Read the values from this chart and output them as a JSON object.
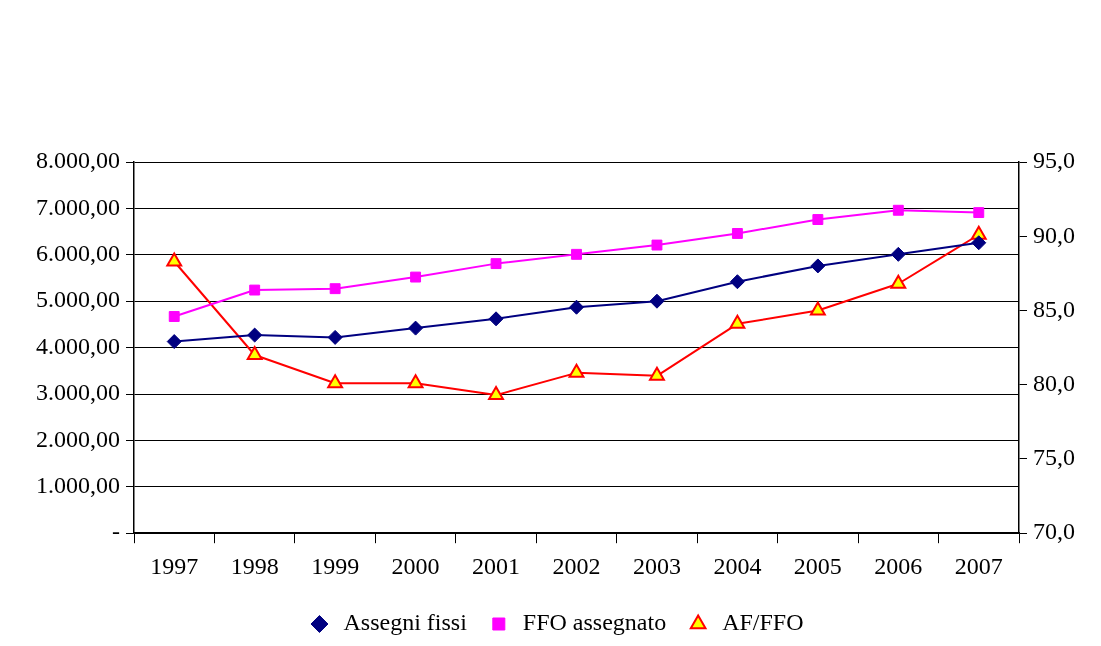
{
  "chart_data": {
    "type": "line",
    "categories": [
      "1997",
      "1998",
      "1999",
      "2000",
      "2001",
      "2002",
      "2003",
      "2004",
      "2005",
      "2006",
      "2007"
    ],
    "series": [
      {
        "name": "Assegni fissi",
        "color": "#000080",
        "marker": "diamond",
        "values": [
          4130,
          4270,
          4220,
          4420,
          4620,
          4870,
          5000,
          5420,
          5760,
          6010,
          6260
        ]
      },
      {
        "name": "FFO assegnato",
        "color": "#ff00ff",
        "marker": "square",
        "values": [
          4670,
          5240,
          5270,
          5520,
          5810,
          6010,
          6210,
          6460,
          6760,
          6960,
          6910
        ]
      },
      {
        "name": "AF/FFO",
        "color": "#ff0000",
        "marker": "triangle",
        "axis": "y2",
        "values": [
          88.3,
          82.0,
          80.1,
          80.1,
          79.3,
          80.8,
          80.6,
          84.1,
          85.0,
          86.8,
          90.1
        ]
      }
    ],
    "ylim": [
      0,
      8000
    ],
    "yticks": [
      {
        "value": 0,
        "label": "-"
      },
      {
        "value": 1000,
        "label": "1.000,00"
      },
      {
        "value": 2000,
        "label": "2.000,00"
      },
      {
        "value": 3000,
        "label": "3.000,00"
      },
      {
        "value": 4000,
        "label": "4.000,00"
      },
      {
        "value": 5000,
        "label": "5.000,00"
      },
      {
        "value": 6000,
        "label": "6.000,00"
      },
      {
        "value": 7000,
        "label": "7.000,00"
      },
      {
        "value": 8000,
        "label": "8.000,00"
      }
    ],
    "y2lim": [
      70,
      95
    ],
    "y2ticks": [
      {
        "value": 70,
        "label": "70,0"
      },
      {
        "value": 75,
        "label": "75,0"
      },
      {
        "value": 80,
        "label": "80,0"
      },
      {
        "value": 85,
        "label": "85,0"
      },
      {
        "value": 90,
        "label": "90,0"
      },
      {
        "value": 95,
        "label": "95,0"
      }
    ],
    "grid": "y",
    "legend": "bottom",
    "line_style": "solid"
  }
}
